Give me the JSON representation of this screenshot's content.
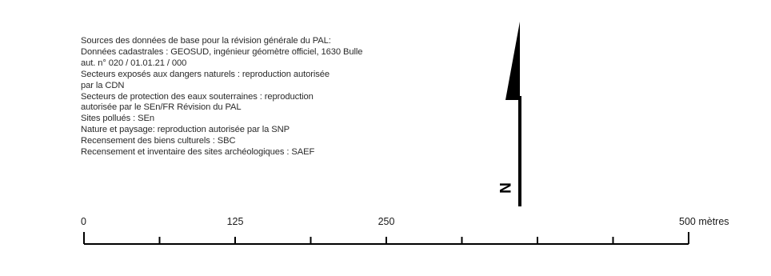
{
  "sources": {
    "lines": [
      "Sources des données de base pour la révision générale du PAL:",
      "Données cadastrales : GEOSUD, ingénieur géomètre officiel, 1630 Bulle",
      "aut. n° 020 / 01.01.21 / 000",
      "Secteurs exposés aux dangers naturels : reproduction autorisée",
      "par la CDN",
      "Secteurs de protection des eaux souterraines : reproduction",
      "autorisée par le SEn/FR Révision du PAL",
      "Sites pollués : SEn",
      "Nature et paysage: reproduction autorisée par la SNP",
      "Recensement des biens culturels : SBC",
      "Recensement et inventaire des sites archéologiques : SAEF"
    ]
  },
  "north_arrow": {
    "label": "N",
    "icon": "north-arrow-icon"
  },
  "scale_bar": {
    "labels": {
      "zero": "0",
      "first": "125",
      "second": "250",
      "end": "500 mètres"
    },
    "tick_values": [
      0,
      62.5,
      125,
      187.5,
      250,
      312.5,
      375,
      437.5,
      500
    ],
    "max": 500,
    "unit": "mètres"
  },
  "colors": {
    "text": "#2a2a2a",
    "ink": "#000000",
    "background": "#ffffff"
  }
}
